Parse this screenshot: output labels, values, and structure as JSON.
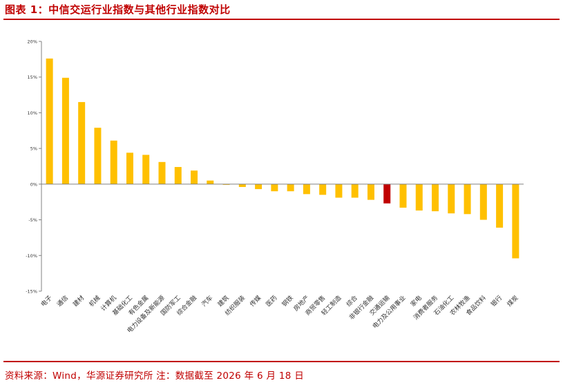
{
  "header": {
    "title": "图表 1：中信交运行业指数与其他行业指数对比"
  },
  "footer": {
    "source": "资料来源：Wind，华源证券研究所 注：数据截至 2026 年 6 月 18 日"
  },
  "colors": {
    "bar": "#ffc000",
    "highlight": "#c00000",
    "axis": "#808080",
    "rule": "#c00000"
  },
  "chart_data": {
    "type": "bar",
    "title": "",
    "xlabel": "",
    "ylabel": "",
    "ylim": [
      -15,
      20
    ],
    "yticks": [
      20,
      15,
      10,
      5,
      0,
      -5,
      -10,
      -15
    ],
    "ytick_labels": [
      "20%",
      "15%",
      "10%",
      "5%",
      "0%",
      "-5%",
      "-10%",
      "-15%"
    ],
    "grid": false,
    "highlight_category": "交通运输",
    "categories": [
      "电子",
      "通信",
      "建材",
      "机械",
      "计算机",
      "基础化工",
      "有色金属",
      "电力设备及新能源",
      "国防军工",
      "综合金融",
      "汽车",
      "建筑",
      "纺织服装",
      "传媒",
      "医药",
      "钢铁",
      "房地产",
      "商贸零售",
      "轻工制造",
      "综合",
      "非银行金融",
      "交通运输",
      "电力及公用事业",
      "家电",
      "消费者服务",
      "石油化工",
      "农林牧渔",
      "食品饮料",
      "银行",
      "煤炭"
    ],
    "values": [
      17.6,
      14.9,
      11.5,
      7.9,
      6.1,
      4.4,
      4.1,
      3.1,
      2.4,
      1.9,
      0.5,
      -0.1,
      -0.4,
      -0.7,
      -1.0,
      -1.0,
      -1.4,
      -1.5,
      -1.9,
      -1.9,
      -2.2,
      -2.7,
      -3.3,
      -3.7,
      -3.8,
      -4.1,
      -4.2,
      -5.0,
      -6.1,
      -10.4
    ]
  }
}
